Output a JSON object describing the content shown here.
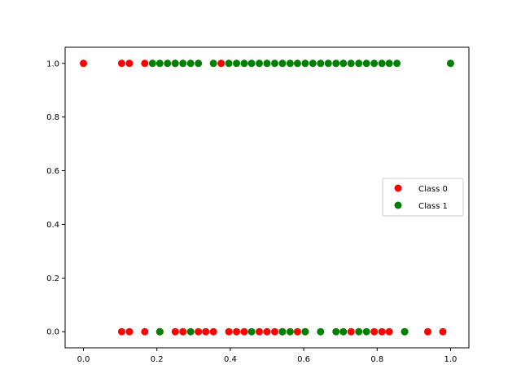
{
  "chart_data": {
    "type": "scatter",
    "title": "",
    "xlabel": "",
    "ylabel": "",
    "xlim": [
      -0.05,
      1.05
    ],
    "ylim": [
      -0.06,
      1.06
    ],
    "xticks": [
      0.0,
      0.2,
      0.4,
      0.6,
      0.8,
      1.0
    ],
    "yticks": [
      0.0,
      0.2,
      0.4,
      0.6,
      0.8,
      1.0
    ],
    "xtick_labels": [
      "0.0",
      "0.2",
      "0.4",
      "0.6",
      "0.8",
      "1.0"
    ],
    "ytick_labels": [
      "0.0",
      "0.2",
      "0.4",
      "0.6",
      "0.8",
      "1.0"
    ],
    "grid": false,
    "legend_position": "center-right",
    "series": [
      {
        "name": "Class 0",
        "color": "#ff0000",
        "points": [
          [
            0.0,
            1
          ],
          [
            0.104,
            1
          ],
          [
            0.125,
            1
          ],
          [
            0.167,
            1
          ],
          [
            0.25,
            1
          ],
          [
            0.375,
            1
          ],
          [
            0.104,
            0
          ],
          [
            0.125,
            0
          ],
          [
            0.167,
            0
          ],
          [
            0.208,
            0
          ],
          [
            0.25,
            0
          ],
          [
            0.271,
            0
          ],
          [
            0.313,
            0
          ],
          [
            0.333,
            0
          ],
          [
            0.354,
            0
          ],
          [
            0.396,
            0
          ],
          [
            0.417,
            0
          ],
          [
            0.438,
            0
          ],
          [
            0.479,
            0
          ],
          [
            0.5,
            0
          ],
          [
            0.521,
            0
          ],
          [
            0.542,
            0
          ],
          [
            0.583,
            0
          ],
          [
            0.604,
            0
          ],
          [
            0.729,
            0
          ],
          [
            0.792,
            0
          ],
          [
            0.813,
            0
          ],
          [
            0.833,
            0
          ],
          [
            0.875,
            0
          ],
          [
            0.938,
            0
          ],
          [
            0.979,
            0
          ]
        ]
      },
      {
        "name": "Class 1",
        "color": "#008000",
        "points": [
          [
            0.188,
            1
          ],
          [
            0.208,
            1
          ],
          [
            0.229,
            1
          ],
          [
            0.25,
            1
          ],
          [
            0.271,
            1
          ],
          [
            0.292,
            1
          ],
          [
            0.313,
            1
          ],
          [
            0.354,
            1
          ],
          [
            0.396,
            1
          ],
          [
            0.417,
            1
          ],
          [
            0.438,
            1
          ],
          [
            0.458,
            1
          ],
          [
            0.479,
            1
          ],
          [
            0.5,
            1
          ],
          [
            0.521,
            1
          ],
          [
            0.542,
            1
          ],
          [
            0.563,
            1
          ],
          [
            0.583,
            1
          ],
          [
            0.604,
            1
          ],
          [
            0.625,
            1
          ],
          [
            0.646,
            1
          ],
          [
            0.667,
            1
          ],
          [
            0.688,
            1
          ],
          [
            0.708,
            1
          ],
          [
            0.729,
            1
          ],
          [
            0.75,
            1
          ],
          [
            0.771,
            1
          ],
          [
            0.792,
            1
          ],
          [
            0.813,
            1
          ],
          [
            0.833,
            1
          ],
          [
            0.854,
            1
          ],
          [
            1.0,
            1
          ],
          [
            0.208,
            0
          ],
          [
            0.292,
            0
          ],
          [
            0.458,
            0
          ],
          [
            0.542,
            0
          ],
          [
            0.563,
            0
          ],
          [
            0.604,
            0
          ],
          [
            0.646,
            0
          ],
          [
            0.688,
            0
          ],
          [
            0.708,
            0
          ],
          [
            0.75,
            0
          ],
          [
            0.771,
            0
          ],
          [
            0.875,
            0
          ]
        ]
      }
    ]
  }
}
